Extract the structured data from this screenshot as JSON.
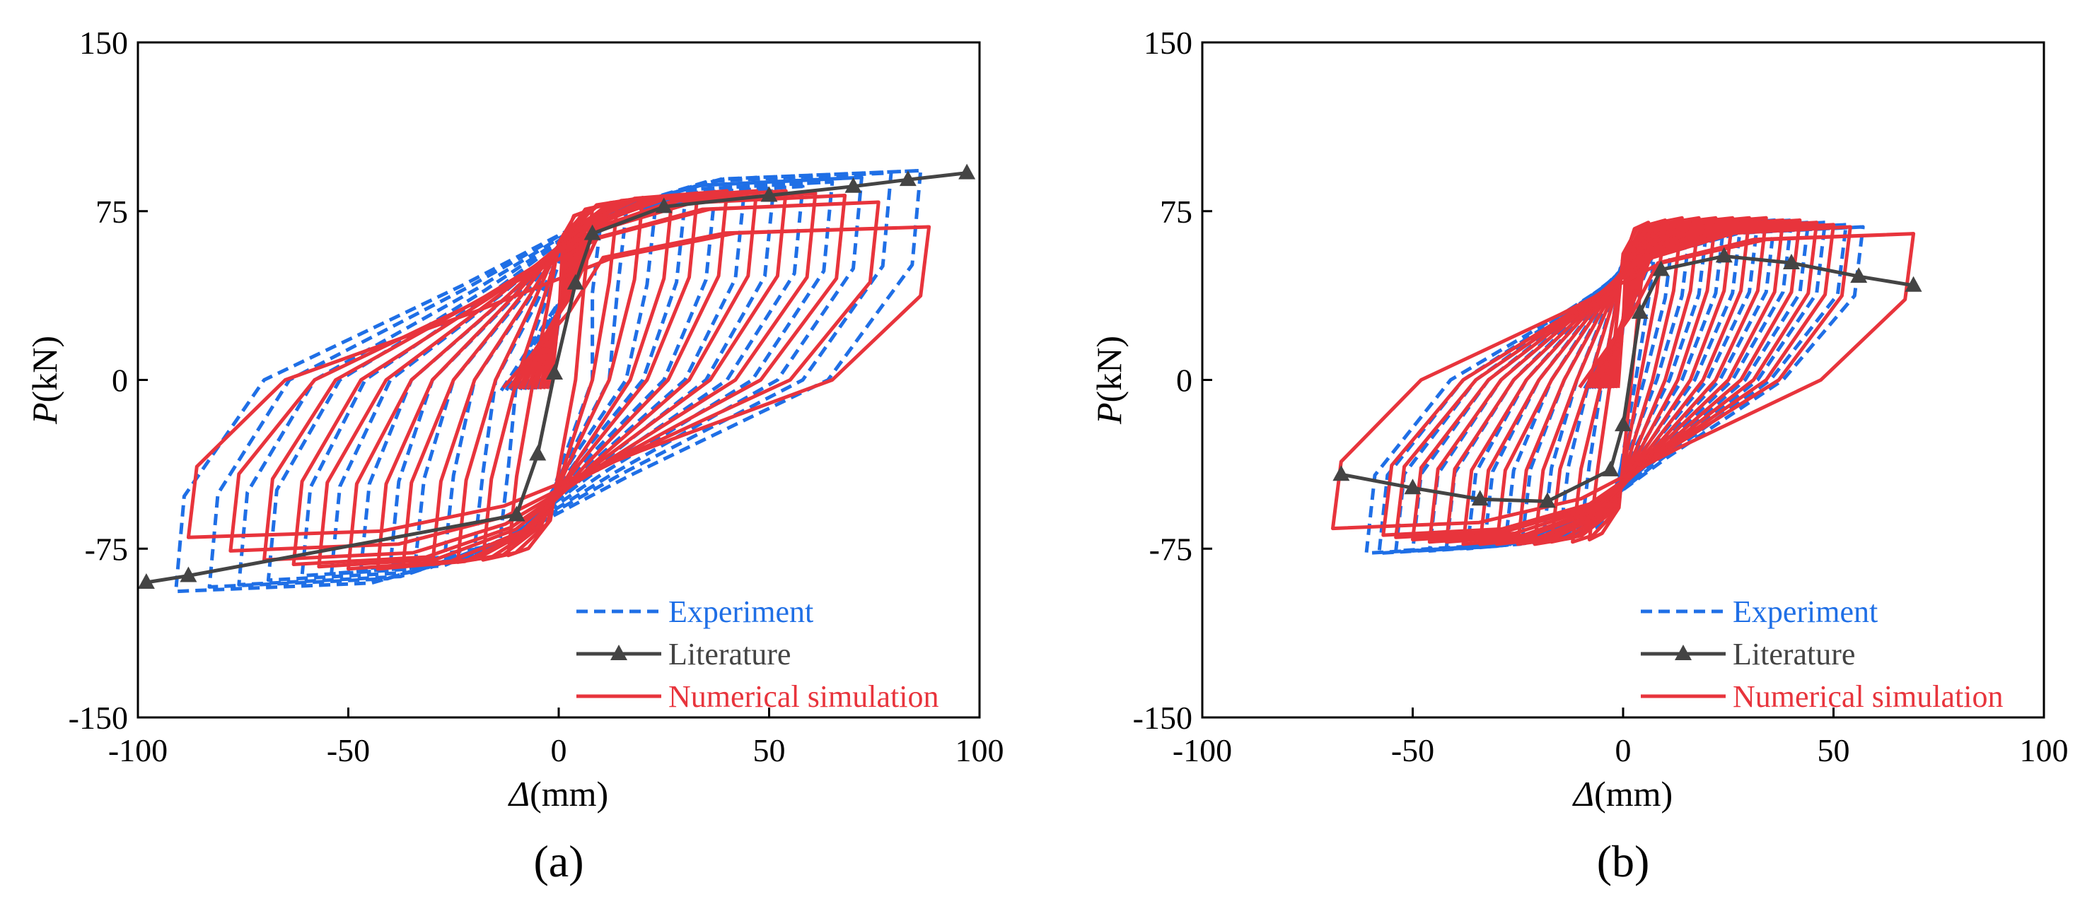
{
  "chart_data": [
    {
      "type": "line",
      "panel_label": "(a)",
      "xlabel_symbol": "Δ",
      "xlabel_unit": "(mm)",
      "ylabel_symbol": "P",
      "ylabel_unit": "(kN)",
      "xlim": [
        -100,
        100
      ],
      "ylim": [
        -150,
        150
      ],
      "xticks": [
        "-100",
        "-50",
        "0",
        "50",
        "100"
      ],
      "yticks": [
        "150",
        "75",
        "0",
        "-75",
        "-150"
      ],
      "legend_position": "bottom-right",
      "legend": [
        "Experiment",
        "Literature",
        "Numerical simulation"
      ],
      "colors": {
        "experiment": "#1f6fe6",
        "literature": "#444444",
        "simulation": "#e8343c"
      },
      "literature_points": [
        [
          -98,
          -90
        ],
        [
          -88,
          -87
        ],
        [
          -10,
          -60
        ],
        [
          -5,
          -33
        ],
        [
          -1,
          3
        ],
        [
          4,
          43
        ],
        [
          8,
          65
        ],
        [
          25,
          77
        ],
        [
          50,
          82
        ],
        [
          70,
          86
        ],
        [
          83,
          89
        ],
        [
          97,
          92
        ]
      ],
      "experiment_loops": [
        {
          "pos": [
            10,
            70
          ],
          "neg": [
            -14,
            -72
          ],
          "res_pos": 8,
          "res_neg": -10
        },
        {
          "pos": [
            16,
            74
          ],
          "neg": [
            -20,
            -75
          ],
          "res_pos": 12,
          "res_neg": -15
        },
        {
          "pos": [
            23,
            77
          ],
          "neg": [
            -27,
            -77
          ],
          "res_pos": 16,
          "res_neg": -20
        },
        {
          "pos": [
            30,
            79
          ],
          "neg": [
            -34,
            -80
          ],
          "res_pos": 20,
          "res_neg": -25
        },
        {
          "pos": [
            37,
            81
          ],
          "neg": [
            -40,
            -82
          ],
          "res_pos": 25,
          "res_neg": -30
        },
        {
          "pos": [
            44,
            82
          ],
          "neg": [
            -47,
            -84
          ],
          "res_pos": 30,
          "res_neg": -35
        },
        {
          "pos": [
            51,
            84
          ],
          "neg": [
            -54,
            -86
          ],
          "res_pos": 35,
          "res_neg": -40
        },
        {
          "pos": [
            58,
            86
          ],
          "neg": [
            -61,
            -87
          ],
          "res_pos": 40,
          "res_neg": -46
        },
        {
          "pos": [
            65,
            88
          ],
          "neg": [
            -69,
            -89
          ],
          "res_pos": 46,
          "res_neg": -52
        },
        {
          "pos": [
            72,
            90
          ],
          "neg": [
            -76,
            -91
          ],
          "res_pos": 52,
          "res_neg": -58
        },
        {
          "pos": [
            79,
            92
          ],
          "neg": [
            -83,
            -92
          ],
          "res_pos": 58,
          "res_neg": -64
        },
        {
          "pos": [
            86,
            93
          ],
          "neg": [
            -91,
            -94
          ],
          "res_pos": 64,
          "res_neg": -70
        }
      ],
      "simulation_loops": [
        {
          "pos": [
            8,
            76
          ],
          "neg": [
            -12,
            -78
          ],
          "res_pos": 4,
          "res_neg": -6
        },
        {
          "pos": [
            14,
            79
          ],
          "neg": [
            -18,
            -80
          ],
          "res_pos": 8,
          "res_neg": -10
        },
        {
          "pos": [
            20,
            81
          ],
          "neg": [
            -24,
            -81
          ],
          "res_pos": 12,
          "res_neg": -15
        },
        {
          "pos": [
            27,
            82
          ],
          "neg": [
            -30,
            -82
          ],
          "res_pos": 17,
          "res_neg": -20
        },
        {
          "pos": [
            33,
            83
          ],
          "neg": [
            -37,
            -83
          ],
          "res_pos": 21,
          "res_neg": -25
        },
        {
          "pos": [
            40,
            84
          ],
          "neg": [
            -43,
            -84
          ],
          "res_pos": 26,
          "res_neg": -30
        },
        {
          "pos": [
            47,
            84
          ],
          "neg": [
            -50,
            -84
          ],
          "res_pos": 31,
          "res_neg": -35
        },
        {
          "pos": [
            54,
            84
          ],
          "neg": [
            -57,
            -83
          ],
          "res_pos": 36,
          "res_neg": -41
        },
        {
          "pos": [
            61,
            83
          ],
          "neg": [
            -63,
            -82
          ],
          "res_pos": 42,
          "res_neg": -47
        },
        {
          "pos": [
            68,
            82
          ],
          "neg": [
            -70,
            -80
          ],
          "res_pos": 48,
          "res_neg": -53
        },
        {
          "pos": [
            76,
            79
          ],
          "neg": [
            -78,
            -76
          ],
          "res_pos": 55,
          "res_neg": -58
        },
        {
          "pos": [
            88,
            68
          ],
          "neg": [
            -88,
            -70
          ],
          "res_pos": 65,
          "res_neg": -65
        }
      ]
    },
    {
      "type": "line",
      "panel_label": "(b)",
      "xlabel_symbol": "Δ",
      "xlabel_unit": "(mm)",
      "ylabel_symbol": "P",
      "ylabel_unit": "(kN)",
      "xlim": [
        -100,
        100
      ],
      "ylim": [
        -150,
        150
      ],
      "xticks": [
        "-100",
        "-50",
        "0",
        "50",
        "100"
      ],
      "yticks": [
        "150",
        "75",
        "0",
        "-75",
        "-150"
      ],
      "legend_position": "bottom-right",
      "legend": [
        "Experiment",
        "Literature",
        "Numerical simulation"
      ],
      "colors": {
        "experiment": "#1f6fe6",
        "literature": "#444444",
        "simulation": "#e8343c"
      },
      "literature_points": [
        [
          -67,
          -42
        ],
        [
          -50,
          -48
        ],
        [
          -34,
          -53
        ],
        [
          -18,
          -54
        ],
        [
          -3,
          -40
        ],
        [
          0,
          -20
        ],
        [
          4,
          30
        ],
        [
          9,
          49
        ],
        [
          24,
          55
        ],
        [
          40,
          52
        ],
        [
          56,
          46
        ],
        [
          69,
          42
        ]
      ],
      "experiment_loops": [
        {
          "pos": [
            8,
            64
          ],
          "neg": [
            -10,
            -68
          ],
          "res_pos": 3,
          "res_neg": -5
        },
        {
          "pos": [
            12,
            66
          ],
          "neg": [
            -15,
            -70
          ],
          "res_pos": 5,
          "res_neg": -8
        },
        {
          "pos": [
            16,
            68
          ],
          "neg": [
            -19,
            -71
          ],
          "res_pos": 8,
          "res_neg": -11
        },
        {
          "pos": [
            20,
            69
          ],
          "neg": [
            -24,
            -72
          ],
          "res_pos": 11,
          "res_neg": -14
        },
        {
          "pos": [
            24,
            70
          ],
          "neg": [
            -28,
            -73
          ],
          "res_pos": 14,
          "res_neg": -17
        },
        {
          "pos": [
            28,
            70
          ],
          "neg": [
            -33,
            -74
          ],
          "res_pos": 17,
          "res_neg": -20
        },
        {
          "pos": [
            32,
            71
          ],
          "neg": [
            -37,
            -75
          ],
          "res_pos": 20,
          "res_neg": -23
        },
        {
          "pos": [
            36,
            71
          ],
          "neg": [
            -42,
            -75
          ],
          "res_pos": 23,
          "res_neg": -26
        },
        {
          "pos": [
            40,
            71
          ],
          "neg": [
            -46,
            -76
          ],
          "res_pos": 26,
          "res_neg": -29
        },
        {
          "pos": [
            44,
            70
          ],
          "neg": [
            -50,
            -76
          ],
          "res_pos": 29,
          "res_neg": -32
        },
        {
          "pos": [
            48,
            70
          ],
          "neg": [
            -54,
            -76
          ],
          "res_pos": 32,
          "res_neg": -35
        },
        {
          "pos": [
            53,
            69
          ],
          "neg": [
            -58,
            -77
          ],
          "res_pos": 35,
          "res_neg": -38
        },
        {
          "pos": [
            57,
            68
          ],
          "neg": [
            -61,
            -77
          ],
          "res_pos": 38,
          "res_neg": -41
        }
      ],
      "simulation_loops": [
        {
          "pos": [
            6,
            70
          ],
          "neg": [
            -8,
            -71
          ],
          "res_pos": 2,
          "res_neg": -3
        },
        {
          "pos": [
            10,
            71
          ],
          "neg": [
            -12,
            -72
          ],
          "res_pos": 4,
          "res_neg": -5
        },
        {
          "pos": [
            14,
            72
          ],
          "neg": [
            -17,
            -72
          ],
          "res_pos": 7,
          "res_neg": -8
        },
        {
          "pos": [
            18,
            72
          ],
          "neg": [
            -21,
            -73
          ],
          "res_pos": 10,
          "res_neg": -11
        },
        {
          "pos": [
            22,
            72
          ],
          "neg": [
            -25,
            -73
          ],
          "res_pos": 13,
          "res_neg": -14
        },
        {
          "pos": [
            26,
            72
          ],
          "neg": [
            -30,
            -73
          ],
          "res_pos": 16,
          "res_neg": -17
        },
        {
          "pos": [
            30,
            72
          ],
          "neg": [
            -34,
            -73
          ],
          "res_pos": 19,
          "res_neg": -20
        },
        {
          "pos": [
            34,
            72
          ],
          "neg": [
            -38,
            -73
          ],
          "res_pos": 22,
          "res_neg": -23
        },
        {
          "pos": [
            38,
            71
          ],
          "neg": [
            -42,
            -72
          ],
          "res_pos": 25,
          "res_neg": -26
        },
        {
          "pos": [
            42,
            71
          ],
          "neg": [
            -46,
            -72
          ],
          "res_pos": 28,
          "res_neg": -29
        },
        {
          "pos": [
            46,
            70
          ],
          "neg": [
            -50,
            -71
          ],
          "res_pos": 31,
          "res_neg": -32
        },
        {
          "pos": [
            50,
            69
          ],
          "neg": [
            -54,
            -70
          ],
          "res_pos": 34,
          "res_neg": -35
        },
        {
          "pos": [
            54,
            68
          ],
          "neg": [
            -57,
            -69
          ],
          "res_pos": 37,
          "res_neg": -38
        },
        {
          "pos": [
            69,
            65
          ],
          "neg": [
            -69,
            -66
          ],
          "res_pos": 47,
          "res_neg": -48
        }
      ]
    }
  ]
}
